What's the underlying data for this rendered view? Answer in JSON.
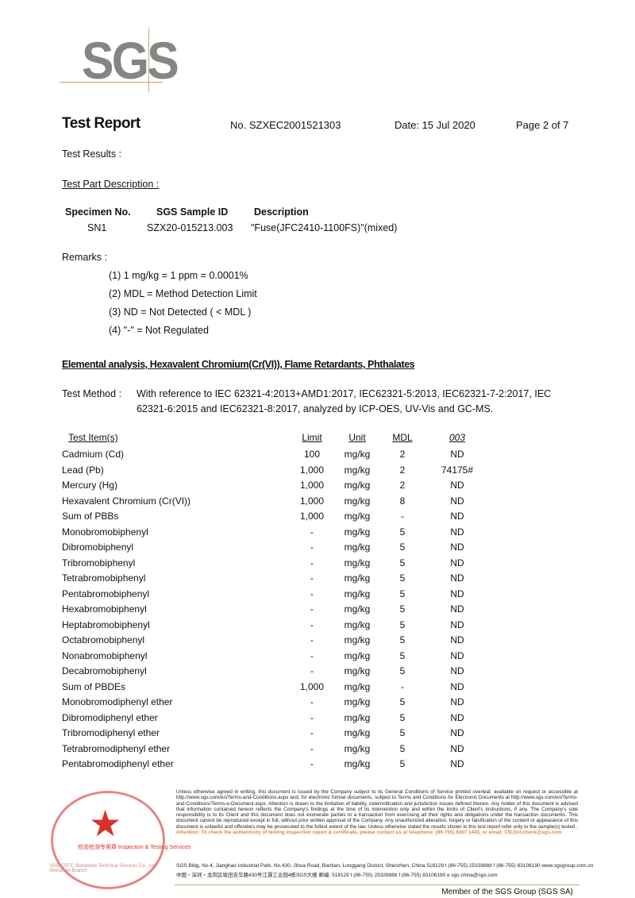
{
  "header": {
    "logo": "SGS",
    "title": "Test Report",
    "report_no": "No. SZXEC2001521303",
    "date": "Date: 15 Jul 2020",
    "page": "Page 2 of 7"
  },
  "test_results_label": "Test Results :",
  "part_description_label": "Test Part Description :",
  "specimen": {
    "headers": [
      "Specimen No.",
      "SGS Sample ID",
      "Description"
    ],
    "row": [
      "SN1",
      "SZX20-015213.003",
      "\"Fuse(JFC2410-1100FS)\"(mixed)"
    ]
  },
  "remarks": {
    "label": "Remarks :",
    "items": [
      "(1) 1 mg/kg = 1 ppm = 0.0001%",
      "(2) MDL = Method Detection Limit",
      "(3) ND = Not Detected ( < MDL )",
      "(4) \"-\" = Not Regulated"
    ]
  },
  "section_title": "Elemental analysis, Hexavalent Chromium(Cr(VI)), Flame Retardants, Phthalates",
  "test_method": {
    "label": "Test Method :",
    "line1": "With reference to IEC 62321-4:2013+AMD1:2017, IEC62321-5:2013, IEC62321-7-2:2017, IEC",
    "line2": "62321-6:2015 and IEC62321-8:2017, analyzed by ICP-OES, UV-Vis and GC-MS."
  },
  "table": {
    "headers": [
      "Test Item(s)",
      "Limit",
      "Unit",
      "MDL",
      "003"
    ],
    "rows": [
      [
        "Cadmium (Cd)",
        "100",
        "mg/kg",
        "2",
        "ND"
      ],
      [
        "Lead (Pb)",
        "1,000",
        "mg/kg",
        "2",
        "74175#"
      ],
      [
        "Mercury (Hg)",
        "1,000",
        "mg/kg",
        "2",
        "ND"
      ],
      [
        "Hexavalent Chromium (Cr(VI))",
        "1,000",
        "mg/kg",
        "8",
        "ND"
      ],
      [
        "Sum of PBBs",
        "1,000",
        "mg/kg",
        "-",
        "ND"
      ],
      [
        "Monobromobiphenyl",
        "-",
        "mg/kg",
        "5",
        "ND"
      ],
      [
        "Dibromobiphenyl",
        "-",
        "mg/kg",
        "5",
        "ND"
      ],
      [
        "Tribromobiphenyl",
        "-",
        "mg/kg",
        "5",
        "ND"
      ],
      [
        "Tetrabromobiphenyl",
        "-",
        "mg/kg",
        "5",
        "ND"
      ],
      [
        "Pentabromobiphenyl",
        "-",
        "mg/kg",
        "5",
        "ND"
      ],
      [
        "Hexabromobiphenyl",
        "-",
        "mg/kg",
        "5",
        "ND"
      ],
      [
        "Heptabromobiphenyl",
        "-",
        "mg/kg",
        "5",
        "ND"
      ],
      [
        "Octabromobiphenyl",
        "-",
        "mg/kg",
        "5",
        "ND"
      ],
      [
        "Nonabromobiphenyl",
        "-",
        "mg/kg",
        "5",
        "ND"
      ],
      [
        "Decabromobiphenyl",
        "-",
        "mg/kg",
        "5",
        "ND"
      ],
      [
        "Sum of PBDEs",
        "1,000",
        "mg/kg",
        "-",
        "ND"
      ],
      [
        "Monobromodiphenyl ether",
        "-",
        "mg/kg",
        "5",
        "ND"
      ],
      [
        "Dibromodiphenyl ether",
        "-",
        "mg/kg",
        "5",
        "ND"
      ],
      [
        "Tribromodiphenyl ether",
        "-",
        "mg/kg",
        "5",
        "ND"
      ],
      [
        "Tetrabromodiphenyl ether",
        "-",
        "mg/kg",
        "5",
        "ND"
      ],
      [
        "Pentabromodiphenyl ether",
        "-",
        "mg/kg",
        "5",
        "ND"
      ]
    ]
  },
  "footer": {
    "stamp_text": "检验检测专用章 Inspection & Testing Services",
    "stamp_side": "SGS-CSTC Standards Technical Services Co., Ltd. Shenzhen Branch",
    "fine_print": "Unless otherwise agreed in writing, this document is issued by the Company subject to its General Conditions of Service printed overleaf, available on request or accessible at http://www.sgs.com/en/Terms-and-Conditions.aspx and, for electronic format documents, subject to Terms and Conditions for Electronic Documents at http://www.sgs.com/en/Terms-and-Conditions/Terms-e-Document.aspx. Attention is drawn to the limitation of liability, indemnification and jurisdiction issues defined therein. Any holder of this document is advised that information contained hereon reflects the Company's findings at the time of its intervention only and within the limits of Client's instructions, if any. The Company's sole responsibility is to its Client and this document does not exonerate parties to a transaction from exercising all their rights and obligations under the transaction documents. This document cannot be reproduced except in full, without prior written approval of the Company. Any unauthorized alteration, forgery or falsification of the content or appearance of this document is unlawful and offenders may be prosecuted to the fullest extent of the law. Unless otherwise stated the results shown in this test report refer only to the sample(s) tested .",
    "attention": "Attention: To check the authenticity of testing inspection report & certificate, please contact us at telephone: (86-755) 8307 1443, or email: CN.Doccheck@sgs.com",
    "address_en": "SGS Bldg, No.4, Jianghao Industrial Park, No.430, Jihua Road, Bantian, Longgang District, Shenzhen, China 518129   t (86-755) 25328888   f (86-755) 83106190   www.sgsgroup.com.cn",
    "address_cn": "中国・深圳・龙岗区坂田吉华路430号江灏工业园4栋SGS大楼   邮编: 518129   t (86-755) 25328888   f (86-755) 83106190   e sgs.china@sgs.com",
    "member": "Member of the SGS Group (SGS SA)"
  },
  "colors": {
    "logo_gray": "#858585",
    "accent_line": "#c9a27a",
    "stamp_red": "#d9302a",
    "attention": "#d98a3a"
  }
}
